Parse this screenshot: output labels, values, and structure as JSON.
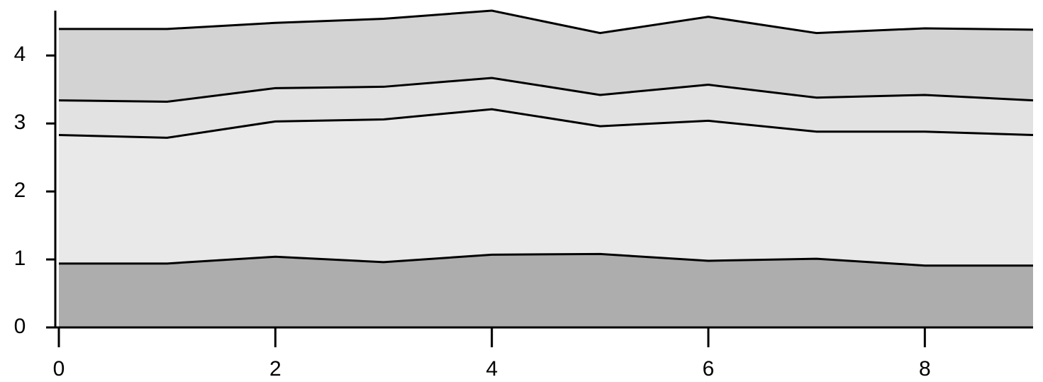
{
  "chart_data": {
    "type": "stacked_area",
    "x": [
      0,
      1,
      2,
      3,
      4,
      5,
      6,
      7,
      8,
      9
    ],
    "series": [
      {
        "color": "#adadad",
        "values": [
          0.94,
          0.94,
          1.04,
          0.96,
          1.07,
          1.08,
          0.98,
          1.01,
          0.91,
          0.91
        ]
      },
      {
        "color": "#e9e9e9",
        "values": [
          1.89,
          1.85,
          1.99,
          2.1,
          2.14,
          1.88,
          2.06,
          1.87,
          1.97,
          1.92
        ]
      },
      {
        "color": "#e2e2e2",
        "values": [
          0.51,
          0.53,
          0.49,
          0.48,
          0.46,
          0.46,
          0.53,
          0.5,
          0.54,
          0.51
        ]
      },
      {
        "color": "#d3d3d3",
        "values": [
          1.05,
          1.07,
          0.96,
          1.0,
          0.99,
          0.91,
          1.0,
          0.95,
          0.98,
          1.04
        ]
      }
    ],
    "line_color": "#000000",
    "xlim": [
      0,
      9
    ],
    "ylim": [
      0,
      4.66
    ],
    "xticks": [
      0,
      2,
      4,
      6,
      8
    ],
    "yticks": [
      0,
      1,
      2,
      3,
      4
    ]
  }
}
